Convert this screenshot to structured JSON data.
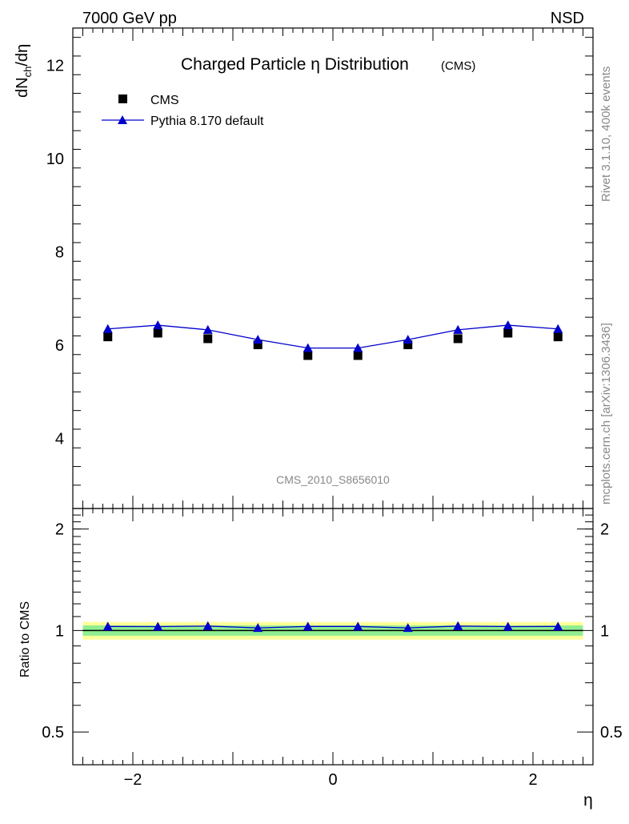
{
  "header": {
    "energy_label": "7000 GeV pp",
    "process_label": "NSD",
    "side_label_top": "Rivet 3.1.10,  400k events",
    "side_label_bottom": "mcplots.cern.ch [arXiv:1306.3436]",
    "analysis_id": "CMS_2010_S8656010"
  },
  "colors": {
    "data": "#000000",
    "mc": "#0000cc",
    "band_inner": "#90ee90",
    "band_outer": "#ffff99",
    "watermark": "#888888"
  },
  "chart_data": [
    {
      "panel": "main",
      "type": "scatter",
      "title": "Charged Particle η Distribution",
      "title_suffix": "(CMS)",
      "xlabel": "η",
      "ylabel": "dN_ch/dη",
      "xlim": [
        -2.6,
        2.6
      ],
      "ylim": [
        2.5,
        12.8
      ],
      "yticks": [
        4,
        6,
        8,
        10,
        12
      ],
      "legend_position": "top-left",
      "x": [
        -2.25,
        -1.75,
        -1.25,
        -0.75,
        -0.25,
        0.25,
        0.75,
        1.25,
        1.75,
        2.25
      ],
      "series": [
        {
          "name": "CMS",
          "marker": "square",
          "values": [
            6.18,
            6.26,
            6.14,
            6.01,
            5.78,
            5.78,
            6.01,
            6.14,
            6.26,
            6.18
          ]
        },
        {
          "name": "Pythia 8.170 default",
          "marker": "triangle",
          "line": true,
          "values": [
            6.35,
            6.43,
            6.33,
            6.12,
            5.94,
            5.94,
            6.12,
            6.33,
            6.43,
            6.35
          ]
        }
      ]
    },
    {
      "panel": "ratio",
      "type": "line",
      "xlabel": "η",
      "ylabel": "Ratio to CMS",
      "xlim": [
        -2.6,
        2.6
      ],
      "ylim": [
        0.4,
        2.3
      ],
      "yscale": "log",
      "yticks": [
        0.5,
        1,
        2
      ],
      "reference": 1,
      "xticks": [
        -2,
        0,
        2
      ],
      "x": [
        -2.25,
        -1.75,
        -1.25,
        -0.75,
        -0.25,
        0.25,
        0.75,
        1.25,
        1.75,
        2.25
      ],
      "series": [
        {
          "name": "Pythia 8.170 default / CMS",
          "values": [
            1.028,
            1.027,
            1.031,
            1.018,
            1.028,
            1.028,
            1.018,
            1.031,
            1.027,
            1.028
          ]
        }
      ],
      "uncertainty_band": {
        "inner_half_width": 0.035,
        "outer_half_width": 0.06
      }
    }
  ]
}
